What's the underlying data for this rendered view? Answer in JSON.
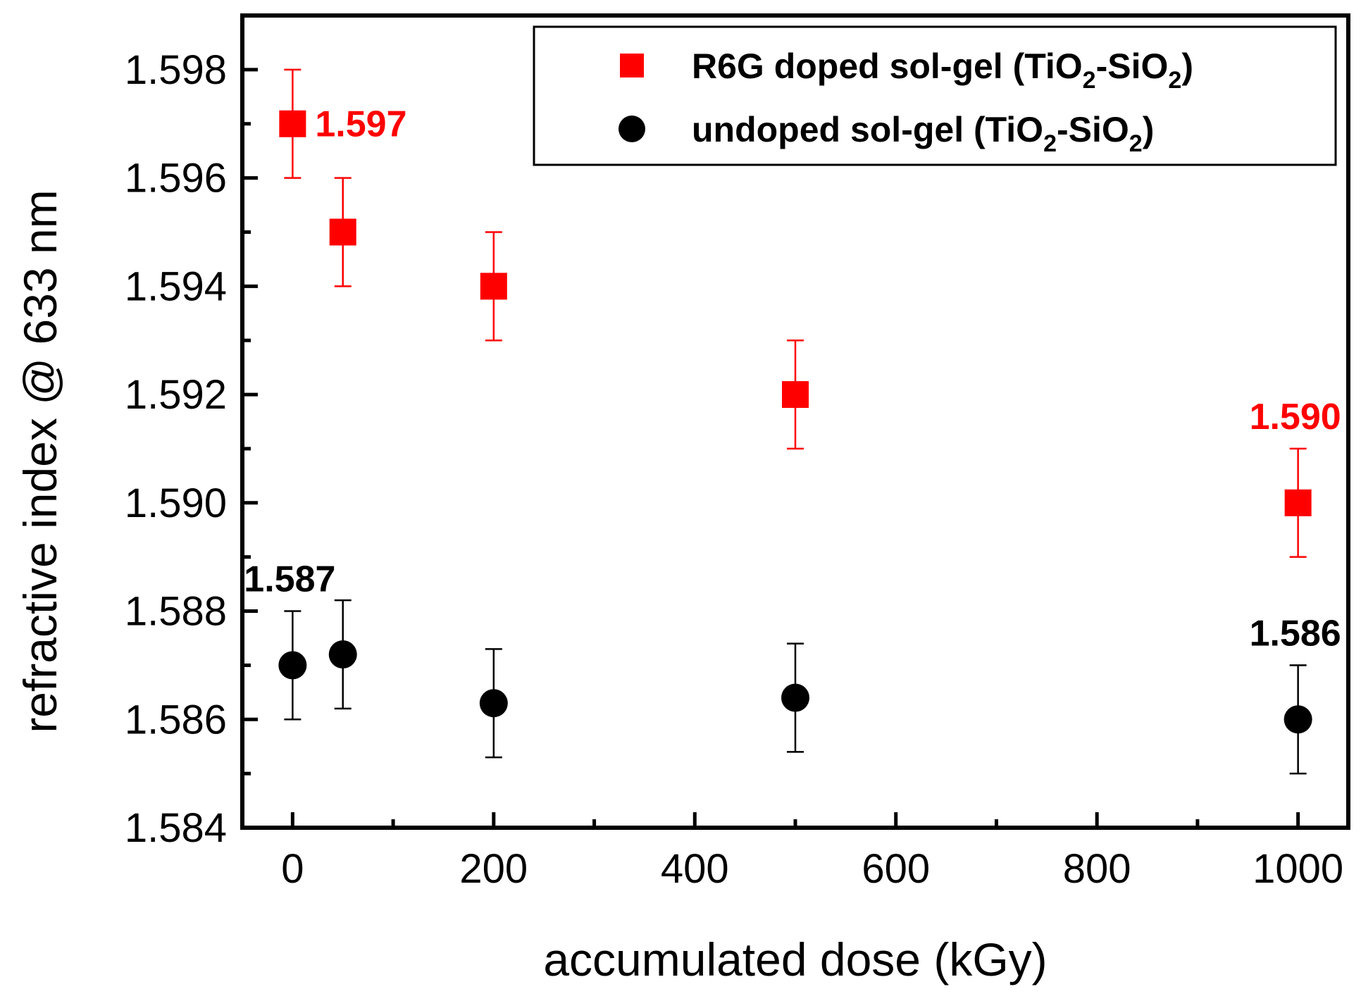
{
  "chart_data": {
    "type": "scatter",
    "title": "",
    "xlabel": "accumulated dose (kGy)",
    "ylabel": "refractive index @ 633 nm",
    "xlim": [
      -50,
      1050
    ],
    "ylim": [
      1.584,
      1.599
    ],
    "xticks": [
      0,
      200,
      400,
      600,
      800,
      1000
    ],
    "yticks": [
      1.584,
      1.586,
      1.588,
      1.59,
      1.592,
      1.594,
      1.596,
      1.598
    ],
    "xtick_labels": [
      "0",
      "200",
      "400",
      "600",
      "800",
      "1000"
    ],
    "ytick_labels": [
      "1.584",
      "1.586",
      "1.588",
      "1.590",
      "1.592",
      "1.594",
      "1.596",
      "1.598"
    ],
    "legend_position": "top-right",
    "series": [
      {
        "name": "R6G doped sol-gel (TiO2-SiO2)",
        "legend_main": "R6G doped sol-gel (TiO",
        "legend_sub1": "2",
        "legend_mid": "-SiO",
        "legend_sub2": "2",
        "legend_end": ")",
        "marker": "square",
        "color": "#ff0000",
        "x": [
          0,
          50,
          200,
          500,
          1000
        ],
        "y": [
          1.597,
          1.595,
          1.594,
          1.592,
          1.59
        ],
        "err": [
          0.001,
          0.001,
          0.001,
          0.001,
          0.001
        ]
      },
      {
        "name": "undoped sol-gel (TiO2-SiO2)",
        "legend_main": "undoped sol-gel (TiO",
        "legend_sub1": "2",
        "legend_mid": "-SiO",
        "legend_sub2": "2",
        "legend_end": ")",
        "marker": "circle",
        "color": "#000000",
        "x": [
          0,
          50,
          200,
          500,
          1000
        ],
        "y": [
          1.587,
          1.5872,
          1.5863,
          1.5864,
          1.586
        ],
        "err": [
          0.001,
          0.001,
          0.001,
          0.001,
          0.001
        ]
      }
    ],
    "annotations": [
      {
        "text": "1.597",
        "x": 0,
        "y": 1.597,
        "color": "#ff0000",
        "anchor": "right"
      },
      {
        "text": "1.590",
        "x": 1000,
        "y": 1.59,
        "color": "#ff0000",
        "anchor": "above"
      },
      {
        "text": "1.587",
        "x": 0,
        "y": 1.587,
        "color": "#000000",
        "anchor": "above"
      },
      {
        "text": "1.586",
        "x": 1000,
        "y": 1.586,
        "color": "#000000",
        "anchor": "above"
      }
    ]
  }
}
